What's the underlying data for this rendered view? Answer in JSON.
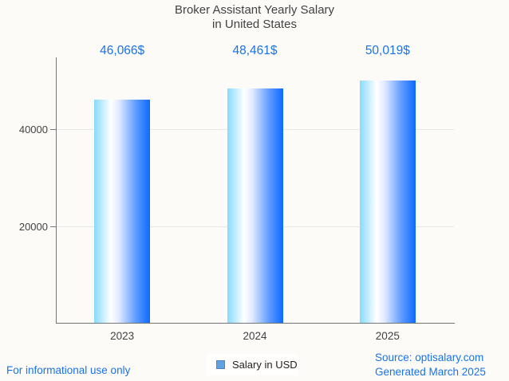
{
  "title": {
    "line1": "Broker Assistant Yearly Salary",
    "line2": "in United States"
  },
  "chart_data": {
    "type": "bar",
    "title": "Broker Assistant Yearly Salary in United States",
    "categories": [
      "2023",
      "2024",
      "2025"
    ],
    "values": [
      46066,
      48461,
      50019
    ],
    "value_labels": [
      "46,066$",
      "48,461$",
      "50,019$"
    ],
    "series_name": "Salary in USD",
    "xlabel": "",
    "ylabel": "",
    "yticks": [
      20000,
      40000
    ],
    "ytick_labels": [
      "20000",
      "40000"
    ],
    "ylim": [
      0,
      54800
    ],
    "grid": "horizontal",
    "legend_position": "bottom-center"
  },
  "legend": {
    "label": "Salary in USD"
  },
  "footer": {
    "disclaimer": "For informational use only",
    "source": "Source: optisalary.com",
    "generated": "Generated March 2025"
  },
  "colors": {
    "background": "#fcfbf7",
    "accent_blue": "#1a73e8",
    "text_dark": "#424242",
    "axis": "#757575",
    "gridline": "#e8e7e3",
    "bar_gradient_left": "#87dbfe",
    "bar_gradient_mid": "#ffffff",
    "bar_gradient_right": "#0e69ff",
    "legend_marker_fill": "#63a0de",
    "legend_marker_border": "#4b86c9"
  }
}
